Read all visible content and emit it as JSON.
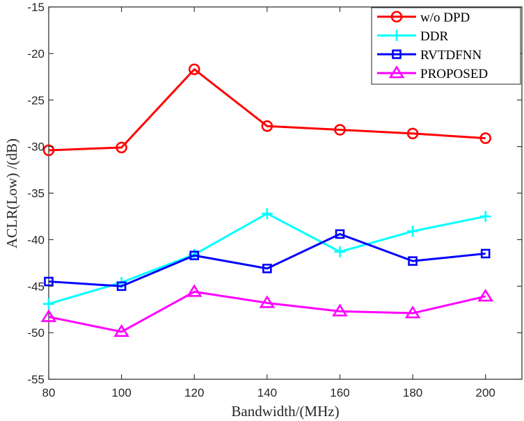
{
  "chart_data": {
    "type": "line",
    "xlabel": "Bandwidth/(MHz)",
    "ylabel": "ACLR(Low) /(dB)",
    "xlim": [
      80,
      210
    ],
    "ylim": [
      -55,
      -15
    ],
    "xticks": [
      "80",
      "100",
      "120",
      "140",
      "160",
      "180",
      "200"
    ],
    "yticks": [
      "-15",
      "-20",
      "-25",
      "-30",
      "-35",
      "-40",
      "-45",
      "-50",
      "-55"
    ],
    "grid": false,
    "legend_position": "top-right",
    "x": [
      80,
      100,
      120,
      140,
      160,
      180,
      200
    ],
    "series": [
      {
        "name": "w/o DPD",
        "color": "#ff0000",
        "marker": "circle",
        "values": [
          -30.4,
          -30.1,
          -21.7,
          -27.8,
          -28.2,
          -28.6,
          -29.1
        ]
      },
      {
        "name": "DDR",
        "color": "#00ffff",
        "marker": "plus",
        "values": [
          -46.9,
          -44.6,
          -41.6,
          -37.2,
          -41.3,
          -39.1,
          -37.5
        ]
      },
      {
        "name": "RVTDFNN",
        "color": "#0000ff",
        "marker": "square",
        "values": [
          -44.5,
          -45.0,
          -41.7,
          -43.1,
          -39.4,
          -42.3,
          -41.5
        ]
      },
      {
        "name": "PROPOSED",
        "color": "#ff00ff",
        "marker": "triangle",
        "values": [
          -48.3,
          -49.9,
          -45.6,
          -46.8,
          -47.7,
          -47.9,
          -46.1
        ]
      }
    ]
  }
}
